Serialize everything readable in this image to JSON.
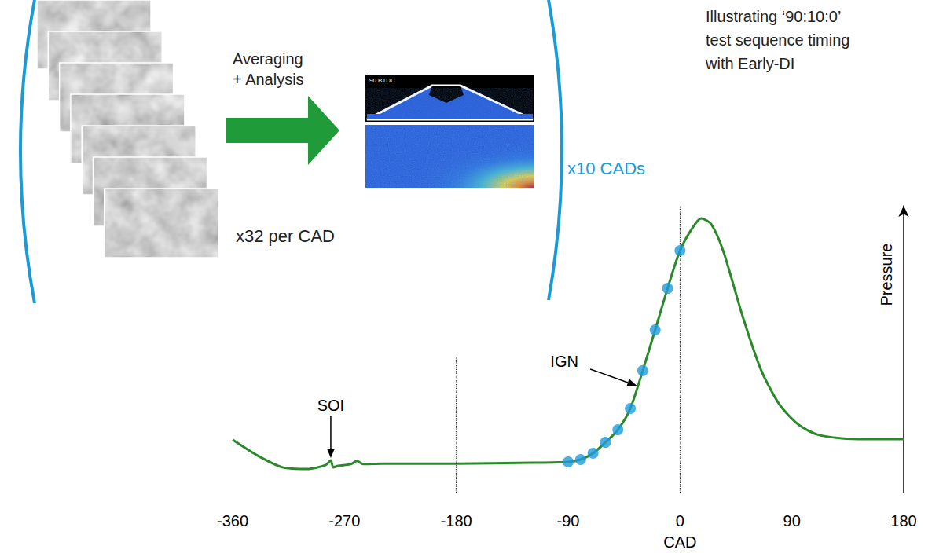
{
  "title_lines": [
    "Illustrating ‘90:10:0’",
    "test sequence timing",
    "with Early-DI"
  ],
  "imaging": {
    "process_label_lines": [
      "Averaging",
      "+ Analysis"
    ],
    "frames_label": "x32 per CAD",
    "frame_image_label": "90 BTDC",
    "repeat_label": "x10 CADs"
  },
  "chart_data": {
    "type": "line",
    "x_label": "CAD",
    "y_label": "Pressure",
    "xlim": [
      -360,
      180
    ],
    "xticks": [
      -360,
      -270,
      -180,
      -90,
      0,
      90,
      180
    ],
    "ylim": [
      0,
      100
    ],
    "tick_labels": "x",
    "grid": false,
    "series": [
      {
        "type": "line",
        "color": "#2a8a2a",
        "line_style": "solid",
        "x": [
          -360,
          -340,
          -320,
          -300,
          -285,
          -281,
          -279,
          -275,
          -265,
          -260,
          -255,
          -240,
          -180,
          -120,
          -90,
          -80,
          -70,
          -60,
          -50,
          -40,
          -30,
          -20,
          -10,
          0,
          10,
          17,
          25,
          35,
          50,
          65,
          80,
          95,
          110,
          130,
          150,
          180
        ],
        "values": [
          18.4,
          12.9,
          8.8,
          8.2,
          9.6,
          11.2,
          8.8,
          9.3,
          9.9,
          11,
          9.9,
          10.1,
          10.1,
          10.4,
          10.7,
          11.5,
          13.7,
          17.5,
          21.9,
          29.3,
          42.5,
          56.7,
          71.2,
          84.4,
          92.3,
          95.6,
          93.7,
          84,
          62,
          43,
          30.7,
          23.8,
          20.3,
          18.9,
          18.6,
          18.6
        ]
      },
      {
        "type": "scatter",
        "color": "#1e9be0",
        "marker": "circle",
        "x": [
          -90,
          -80,
          -70,
          -60,
          -50,
          -40,
          -30,
          -20,
          -10,
          0
        ],
        "values": [
          10.7,
          11.5,
          13.7,
          17.5,
          21.9,
          29.3,
          42.5,
          56.7,
          71.2,
          84.4
        ]
      }
    ],
    "annotations": [
      {
        "text": "SOI",
        "x": -281,
        "y": 11.2
      },
      {
        "text": "IGN",
        "x": -33,
        "y": 37
      }
    ],
    "vlines": [
      {
        "x": -180,
        "ylim": [
          0,
          47
        ],
        "line_style": "dotted"
      },
      {
        "x": 0,
        "ylim": [
          0,
          100
        ],
        "line_style": "dotted"
      }
    ]
  }
}
